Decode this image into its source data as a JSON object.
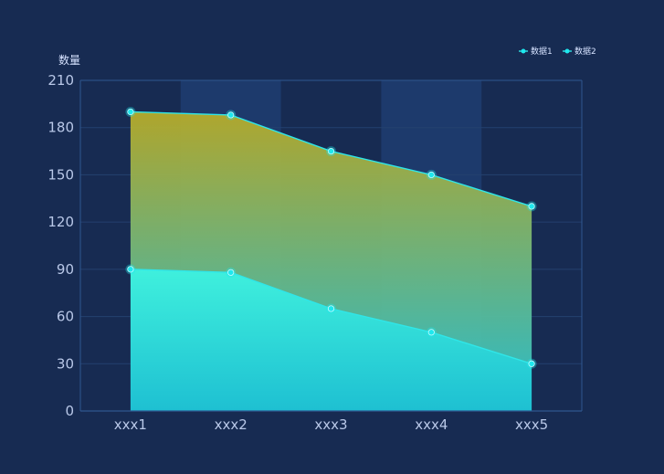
{
  "chart_data": {
    "type": "area",
    "title": "",
    "xlabel": "",
    "ylabel": "数量",
    "categories": [
      "xxx1",
      "xxx2",
      "xxx3",
      "xxx4",
      "xxx5"
    ],
    "ylim": [
      0,
      210
    ],
    "yticks": [
      0,
      30,
      60,
      90,
      120,
      150,
      180,
      210
    ],
    "legend_position": "top-right",
    "series": [
      {
        "name": "数据1",
        "values": [
          190,
          188,
          165,
          150,
          130
        ]
      },
      {
        "name": "数据2",
        "values": [
          90,
          88,
          65,
          50,
          30
        ]
      }
    ],
    "colors": {
      "background": "#172b52",
      "band": "#1d3a6c",
      "axis": "#2f5790",
      "grid": "#24416f",
      "line": "#2fe6e8",
      "marker": "#1ee8ee",
      "area1_top": "#b7ac2a",
      "area1_bottom": "#3fc0b8",
      "area2_top": "#3ff0dd",
      "area2_bottom": "#1ec0d2"
    }
  }
}
